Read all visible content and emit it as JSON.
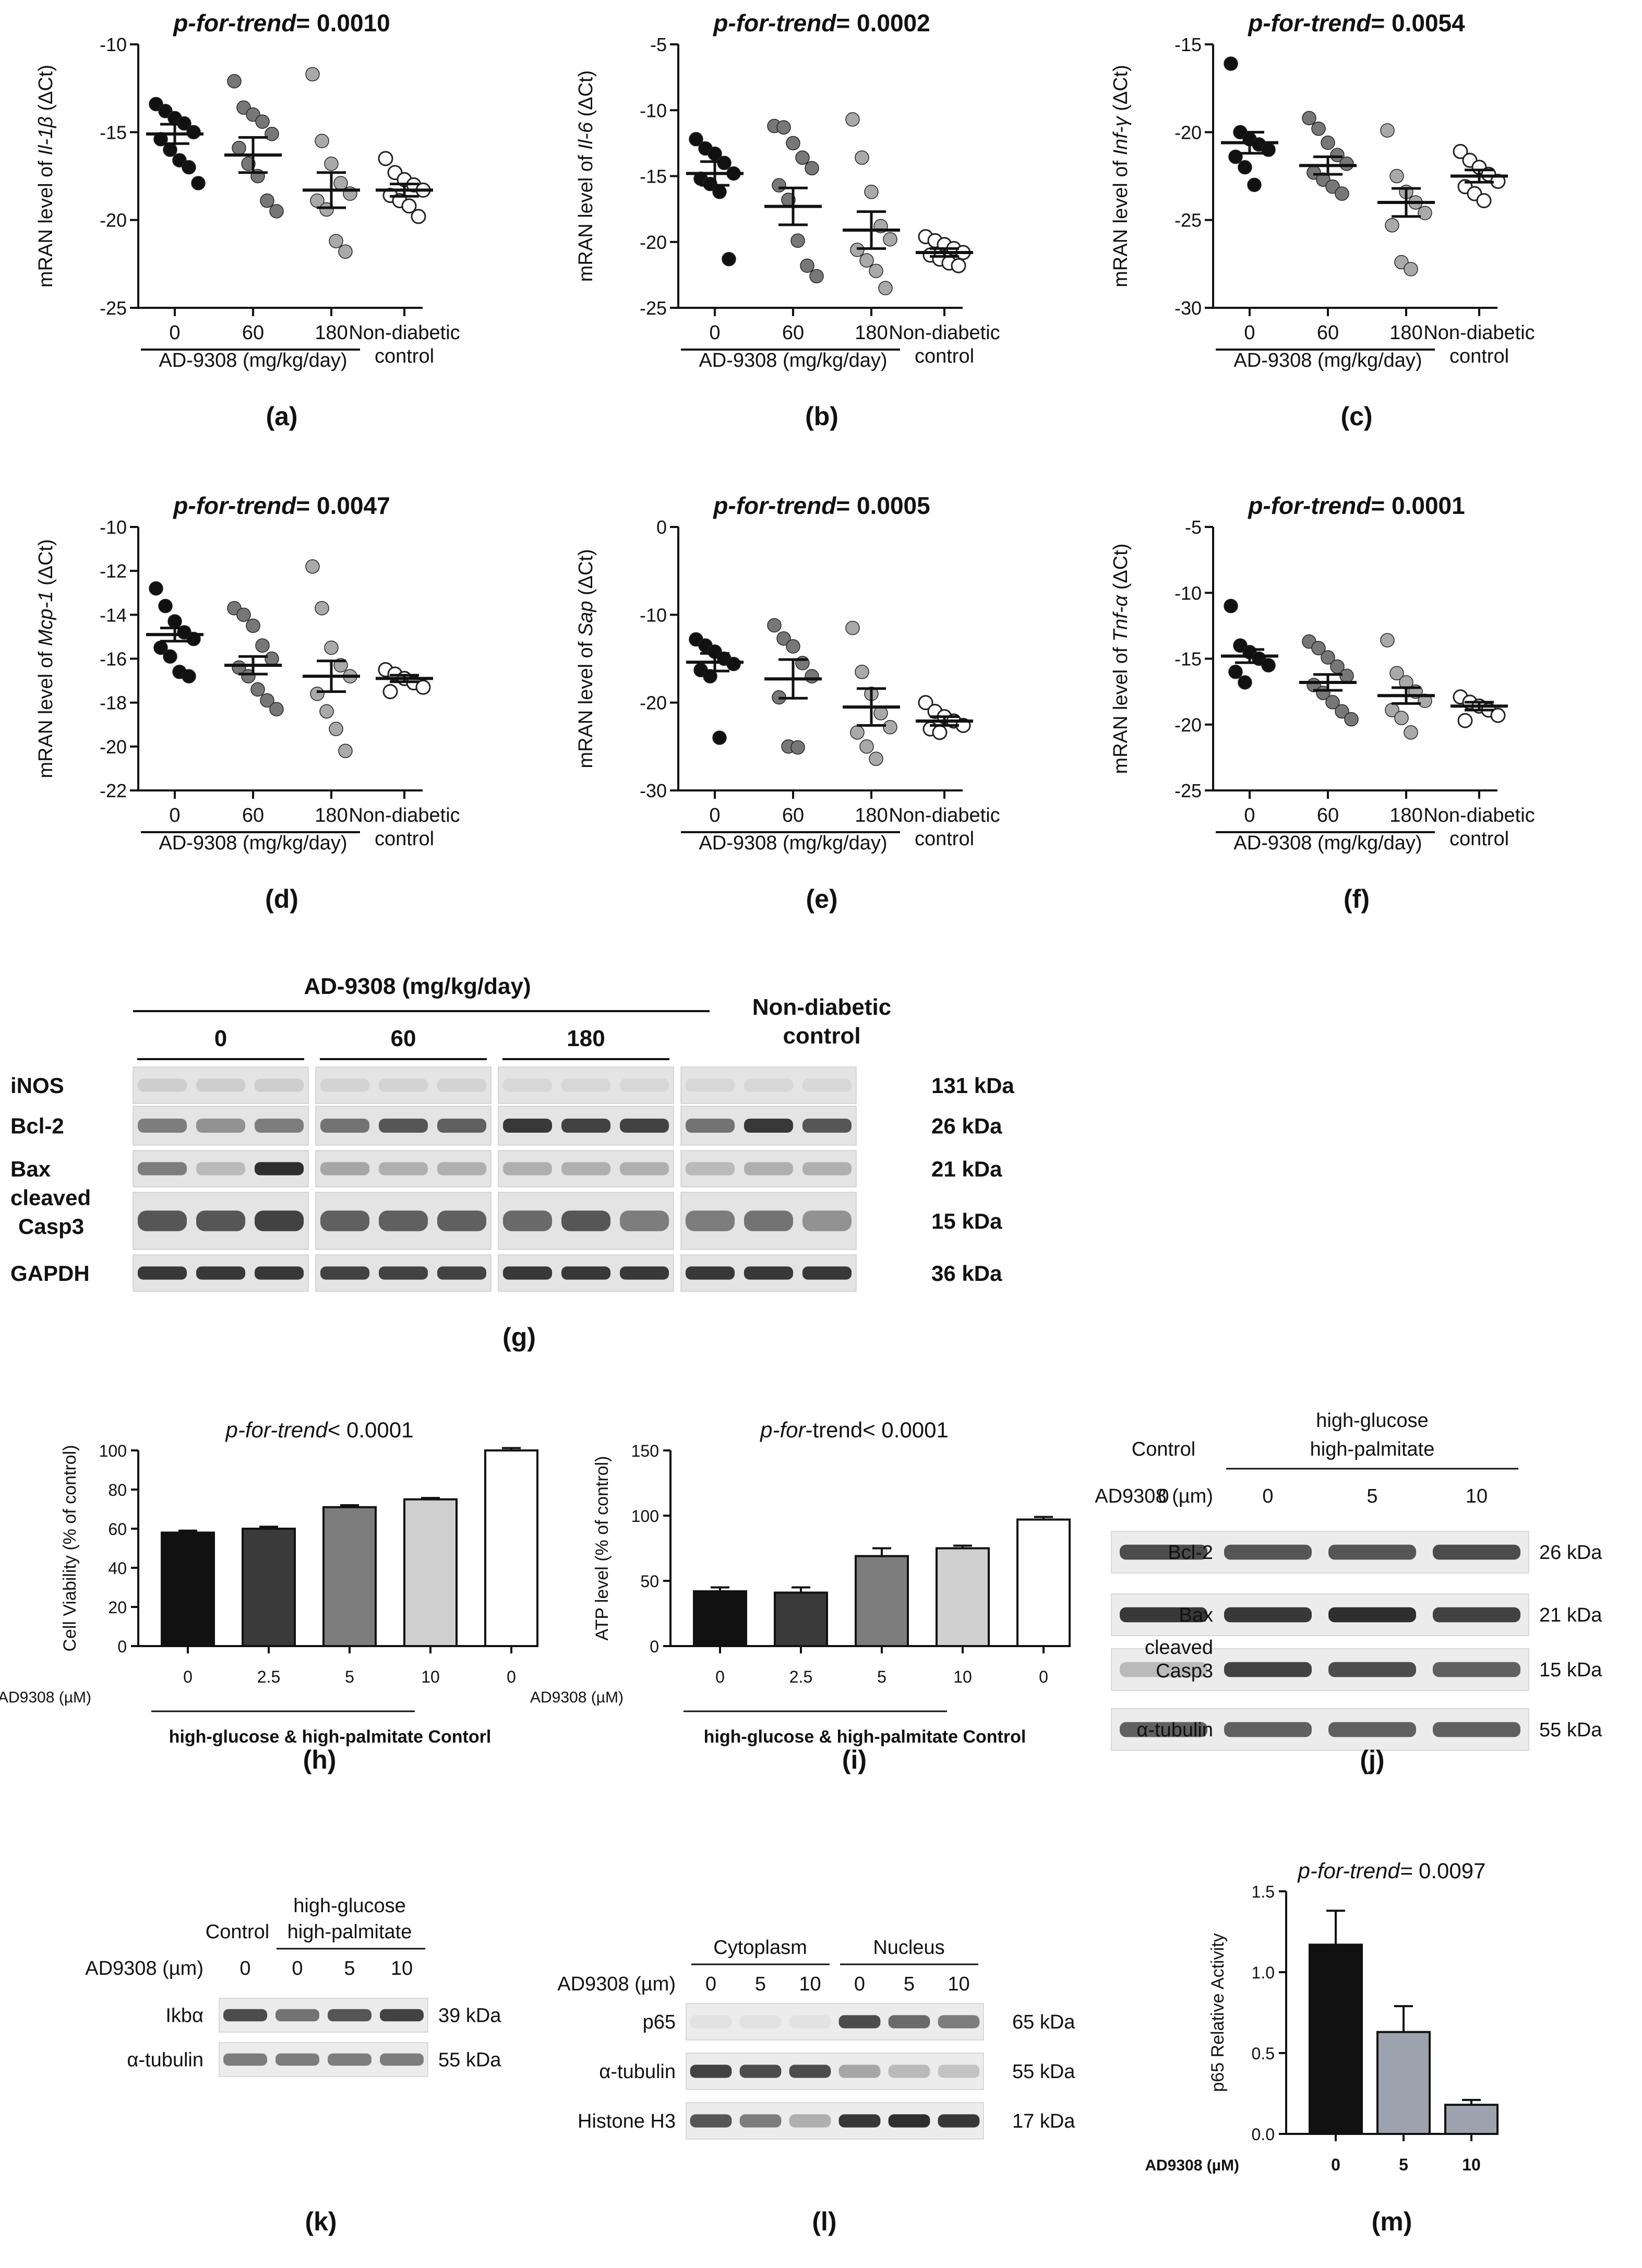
{
  "mrna_panels": [
    {
      "id": "a",
      "label": "(a)",
      "trend_prefix": "p-for-trend=",
      "trend_value": "0.0010",
      "ylabel_prefix": "mRAN level of ",
      "gene": "Il-1β",
      "ylabel_suffix": " (ΔCt)",
      "ylim": [
        -25,
        -10
      ],
      "yticks": [
        "-10",
        "-15",
        "-20",
        "-25"
      ],
      "groups": [
        {
          "x": "0",
          "color": "#111111",
          "mean": -15.1,
          "sem": 0.55,
          "points": [
            -13.4,
            -13.8,
            -14.2,
            -14.5,
            -15.0,
            -15.4,
            -16.0,
            -16.6,
            -17.0,
            -17.9
          ]
        },
        {
          "x": "60",
          "color": "#777777",
          "mean": -16.3,
          "sem": 1.0,
          "points": [
            -12.1,
            -13.6,
            -14.0,
            -14.4,
            -15.1,
            -15.9,
            -16.8,
            -17.5,
            -18.9,
            -19.5
          ]
        },
        {
          "x": "180",
          "color": "#a9a9a9",
          "mean": -18.3,
          "sem": 1.0,
          "points": [
            -11.7,
            -15.5,
            -16.8,
            -17.9,
            -18.5,
            -18.9,
            -19.4,
            -21.2,
            -21.8
          ]
        },
        {
          "x": "Non-diabetic control",
          "color": "#ffffff",
          "mean": -18.3,
          "sem": 0.35,
          "points": [
            -16.5,
            -17.3,
            -17.7,
            -18.0,
            -18.3,
            -18.6,
            -18.9,
            -19.2,
            -19.8
          ]
        }
      ]
    },
    {
      "id": "b",
      "label": "(b)",
      "trend_prefix": "p-for-trend=",
      "trend_value": "0.0002",
      "ylabel_prefix": "mRAN level of ",
      "gene": "Il-6",
      "ylabel_suffix": " (ΔCt)",
      "ylim": [
        -25,
        -5
      ],
      "yticks": [
        "-5",
        "-10",
        "-15",
        "-20",
        "-25"
      ],
      "groups": [
        {
          "x": "0",
          "color": "#111111",
          "mean": -14.8,
          "sem": 0.9,
          "points": [
            -12.2,
            -12.9,
            -13.3,
            -14.0,
            -14.8,
            -15.2,
            -15.6,
            -16.2,
            -21.3
          ]
        },
        {
          "x": "60",
          "color": "#777777",
          "mean": -17.3,
          "sem": 1.4,
          "points": [
            -11.2,
            -11.3,
            -12.5,
            -13.6,
            -14.4,
            -15.7,
            -16.8,
            -19.9,
            -21.8,
            -22.6
          ]
        },
        {
          "x": "180",
          "color": "#a9a9a9",
          "mean": -19.1,
          "sem": 1.4,
          "points": [
            -10.7,
            -13.6,
            -16.2,
            -18.8,
            -19.8,
            -20.6,
            -21.4,
            -22.2,
            -23.5
          ]
        },
        {
          "x": "Non-diabetic control",
          "color": "#ffffff",
          "mean": -20.8,
          "sem": 0.3,
          "points": [
            -19.6,
            -19.9,
            -20.2,
            -20.5,
            -20.8,
            -21.0,
            -21.3,
            -21.6,
            -21.8
          ]
        }
      ]
    },
    {
      "id": "c",
      "label": "(c)",
      "trend_prefix": "p-for-trend=",
      "trend_value": "0.0054",
      "ylabel_prefix": "mRAN level of ",
      "gene": "Inf-γ",
      "ylabel_suffix": " (ΔCt)",
      "ylim": [
        -30,
        -15
      ],
      "yticks": [
        "-15",
        "-20",
        "-25",
        "-30"
      ],
      "groups": [
        {
          "x": "0",
          "color": "#111111",
          "mean": -20.6,
          "sem": 0.6,
          "points": [
            -16.1,
            -20.0,
            -20.4,
            -20.7,
            -21.0,
            -21.4,
            -22.0,
            -23.0
          ]
        },
        {
          "x": "60",
          "color": "#777777",
          "mean": -21.9,
          "sem": 0.5,
          "points": [
            -19.2,
            -19.8,
            -20.6,
            -21.3,
            -21.8,
            -22.3,
            -22.7,
            -23.1,
            -23.5
          ]
        },
        {
          "x": "180",
          "color": "#a9a9a9",
          "mean": -24.0,
          "sem": 0.8,
          "points": [
            -19.9,
            -22.5,
            -23.4,
            -24.0,
            -24.6,
            -25.3,
            -27.4,
            -27.8
          ]
        },
        {
          "x": "Non-diabetic control",
          "color": "#ffffff",
          "mean": -22.5,
          "sem": 0.35,
          "points": [
            -21.1,
            -21.6,
            -22.0,
            -22.4,
            -22.8,
            -23.1,
            -23.5,
            -23.9
          ]
        }
      ]
    },
    {
      "id": "d",
      "label": "(d)",
      "trend_prefix": "p-for-trend=",
      "trend_value": "0.0047",
      "ylabel_prefix": "mRAN level of ",
      "gene": "Mcp-1",
      "ylabel_suffix": " (ΔCt)",
      "ylim": [
        -22,
        -10
      ],
      "yticks": [
        "-10",
        "-12",
        "-14",
        "-16",
        "-18",
        "-20",
        "-22"
      ],
      "groups": [
        {
          "x": "0",
          "color": "#111111",
          "mean": -14.9,
          "sem": 0.3,
          "points": [
            -12.8,
            -13.6,
            -14.3,
            -14.8,
            -15.1,
            -15.5,
            -15.9,
            -16.6,
            -16.8
          ]
        },
        {
          "x": "60",
          "color": "#777777",
          "mean": -16.3,
          "sem": 0.4,
          "points": [
            -13.7,
            -14.0,
            -14.5,
            -15.4,
            -16.0,
            -16.4,
            -16.8,
            -17.4,
            -17.9,
            -18.3
          ]
        },
        {
          "x": "180",
          "color": "#a9a9a9",
          "mean": -16.8,
          "sem": 0.7,
          "points": [
            -11.8,
            -13.7,
            -15.5,
            -16.3,
            -16.8,
            -17.6,
            -18.4,
            -19.2,
            -20.2
          ]
        },
        {
          "x": "Non-diabetic control",
          "color": "#ffffff",
          "mean": -16.9,
          "sem": 0.15,
          "points": [
            -16.5,
            -16.7,
            -16.9,
            -17.1,
            -17.3,
            -17.5
          ]
        }
      ]
    },
    {
      "id": "e",
      "label": "(e)",
      "trend_prefix": "p-for-trend=",
      "trend_value": "0.0005",
      "ylabel_prefix": "mRAN level of ",
      "gene": "Sap",
      "ylabel_suffix": " (ΔCt)",
      "ylim": [
        -30,
        0
      ],
      "yticks": [
        "0",
        "-10",
        "-20",
        "-30"
      ],
      "groups": [
        {
          "x": "0",
          "color": "#111111",
          "mean": -15.4,
          "sem": 1.0,
          "points": [
            -12.8,
            -13.5,
            -14.2,
            -15.0,
            -15.6,
            -16.3,
            -17.0,
            -24.0
          ]
        },
        {
          "x": "60",
          "color": "#777777",
          "mean": -17.3,
          "sem": 2.2,
          "points": [
            -11.2,
            -12.7,
            -13.6,
            -15.5,
            -17.0,
            -19.4,
            -25.0,
            -25.1
          ]
        },
        {
          "x": "180",
          "color": "#a9a9a9",
          "mean": -20.5,
          "sem": 2.1,
          "points": [
            -11.5,
            -16.5,
            -19.0,
            -21.2,
            -22.8,
            -23.4,
            -25.0,
            -26.4
          ]
        },
        {
          "x": "Non-diabetic control",
          "color": "#ffffff",
          "mean": -22.1,
          "sem": 0.5,
          "points": [
            -20.0,
            -21.0,
            -21.6,
            -22.1,
            -22.6,
            -23.0,
            -23.4
          ]
        }
      ]
    },
    {
      "id": "f",
      "label": "(f)",
      "trend_prefix": "p-for-trend=",
      "trend_value": "0.0001",
      "ylabel_prefix": "mRAN level of ",
      "gene": "Tnf-α",
      "ylabel_suffix": " (ΔCt)",
      "ylim": [
        -25,
        -5
      ],
      "yticks": [
        "-5",
        "-10",
        "-15",
        "-20",
        "-25"
      ],
      "groups": [
        {
          "x": "0",
          "color": "#111111",
          "mean": -14.8,
          "sem": 0.5,
          "points": [
            -11.0,
            -14.0,
            -14.5,
            -15.0,
            -15.5,
            -16.0,
            -16.8
          ]
        },
        {
          "x": "60",
          "color": "#777777",
          "mean": -16.8,
          "sem": 0.6,
          "points": [
            -13.7,
            -14.2,
            -14.9,
            -15.6,
            -16.3,
            -17.0,
            -17.6,
            -18.3,
            -19.0,
            -19.6
          ]
        },
        {
          "x": "180",
          "color": "#a9a9a9",
          "mean": -17.8,
          "sem": 0.6,
          "points": [
            -13.6,
            -16.1,
            -16.8,
            -17.5,
            -18.2,
            -18.9,
            -19.5,
            -20.6
          ]
        },
        {
          "x": "Non-diabetic control",
          "color": "#ffffff",
          "mean": -18.6,
          "sem": 0.3,
          "points": [
            -17.9,
            -18.3,
            -18.6,
            -18.9,
            -19.3,
            -19.7
          ]
        }
      ]
    }
  ],
  "mrna_axis_group_label": "AD-9308 (mg/kg/day)",
  "mrna_xcat_control_line1": "Non-diabetic",
  "mrna_xcat_control_line2": "control",
  "blot_g": {
    "label": "(g)",
    "header_treatment": "AD-9308 (mg/kg/day)",
    "groups": [
      "0",
      "60",
      "180"
    ],
    "control_line1": "Non-diabetic",
    "control_line2": "control",
    "rows": [
      {
        "name": "iNOS",
        "kda": "131 kDa",
        "intensities": [
          0.15,
          0.15,
          0.15,
          0.12,
          0.12,
          0.12,
          0.1,
          0.1,
          0.1,
          0.1,
          0.1,
          0.1
        ]
      },
      {
        "name": "Bcl-2",
        "kda": "26 kDa",
        "intensities": [
          0.55,
          0.45,
          0.55,
          0.6,
          0.75,
          0.7,
          0.9,
          0.85,
          0.85,
          0.6,
          0.9,
          0.75
        ]
      },
      {
        "name": "Bax",
        "kda": "21 kDa",
        "intensities": [
          0.55,
          0.25,
          0.95,
          0.35,
          0.3,
          0.3,
          0.3,
          0.3,
          0.3,
          0.25,
          0.3,
          0.3
        ]
      },
      {
        "name_line1": "cleaved",
        "name": "Casp3",
        "kda": "15 kDa",
        "intensities": [
          0.75,
          0.75,
          0.85,
          0.7,
          0.7,
          0.7,
          0.65,
          0.75,
          0.55,
          0.55,
          0.6,
          0.45
        ]
      },
      {
        "name": "GAPDH",
        "kda": "36 kDa",
        "intensities": [
          0.9,
          0.9,
          0.9,
          0.85,
          0.85,
          0.85,
          0.9,
          0.9,
          0.9,
          0.9,
          0.9,
          0.9
        ]
      }
    ]
  },
  "chart_data": [
    {
      "id": "h",
      "label": "(h)",
      "type": "bar",
      "title_prefix": "p-for-",
      "title_italic": "trend",
      "title_suffix": "< 0.0001",
      "ylabel": "Cell Viability (% of control)",
      "ylim": [
        0,
        100
      ],
      "yticks": [
        "0",
        "20",
        "40",
        "60",
        "80",
        "100"
      ],
      "xprefix": "AD9308 (µM)",
      "categories": [
        "0",
        "2.5",
        "5",
        "10",
        "0"
      ],
      "values": [
        58,
        60,
        71,
        75,
        100
      ],
      "errors": [
        1,
        1,
        1,
        0.7,
        1.2
      ],
      "colors": [
        "#111111",
        "#3a3a3a",
        "#7d7d7d",
        "#cfcfcf",
        "#ffffff"
      ],
      "group_caption": "high-glucose & high-palmitate Contorl"
    },
    {
      "id": "i",
      "label": "(i)",
      "type": "bar",
      "title_prefix": "p-",
      "title_italic": "for",
      "title_suffix": "-trend< 0.0001",
      "ylabel": "ATP level (% of control)",
      "ylim": [
        0,
        150
      ],
      "yticks": [
        "0",
        "50",
        "100",
        "150"
      ],
      "xprefix": "AD9308 (µM)",
      "categories": [
        "0",
        "2.5",
        "5",
        "10",
        "0"
      ],
      "values": [
        42,
        41,
        69,
        75,
        97
      ],
      "errors": [
        3,
        4,
        6,
        2,
        2
      ],
      "colors": [
        "#111111",
        "#3a3a3a",
        "#7d7d7d",
        "#cfcfcf",
        "#ffffff"
      ],
      "group_caption": "high-glucose & high-palmitate Control"
    },
    {
      "id": "m",
      "label": "(m)",
      "type": "bar",
      "title_prefix": "p-for-trend= ",
      "title_italic": "",
      "title_suffix": "0.0097",
      "ylabel": "p65 Relative Activity",
      "ylim": [
        0,
        1.5
      ],
      "yticks": [
        "0.0",
        "0.5",
        "1.0",
        "1.5"
      ],
      "xprefix": "AD9308 (µM)",
      "categories": [
        "0",
        "5",
        "10"
      ],
      "values": [
        1.17,
        0.63,
        0.18
      ],
      "errors": [
        0.21,
        0.16,
        0.03
      ],
      "colors": [
        "#111111",
        "#9da3ae",
        "#9da3ae"
      ],
      "group_caption": ""
    }
  ],
  "blot_j": {
    "label": "(j)",
    "control": "Control",
    "treat_line1": "high-glucose",
    "treat_line2": "high-palmitate",
    "dose_prefix": "AD9308 (µm)",
    "doses": [
      "0",
      "0",
      "5",
      "10"
    ],
    "rows": [
      {
        "name": "Bcl-2",
        "kda": "26 kDa",
        "intensities": [
          0.8,
          0.75,
          0.75,
          0.8
        ]
      },
      {
        "name": "Bax",
        "kda": "21 kDa",
        "intensities": [
          0.9,
          0.9,
          0.95,
          0.85
        ]
      },
      {
        "name_line1": "cleaved",
        "name": "Casp3",
        "kda": "15 kDa",
        "intensities": [
          0.25,
          0.85,
          0.8,
          0.7
        ]
      },
      {
        "name": "α-tubulin",
        "kda": "55 kDa",
        "intensities": [
          0.7,
          0.7,
          0.7,
          0.7
        ]
      }
    ]
  },
  "blot_k": {
    "label": "(k)",
    "control": "Control",
    "treat_line1": "high-glucose",
    "treat_line2": "high-palmitate",
    "dose_prefix": "AD9308 (µm)",
    "doses": [
      "0",
      "0",
      "5",
      "10"
    ],
    "rows": [
      {
        "name": "Ikbα",
        "kda": "39 kDa",
        "intensities": [
          0.8,
          0.6,
          0.75,
          0.85
        ]
      },
      {
        "name": "α-tubulin",
        "kda": "55 kDa",
        "intensities": [
          0.55,
          0.55,
          0.55,
          0.55
        ]
      }
    ]
  },
  "blot_l": {
    "label": "(l)",
    "cytoplasm": "Cytoplasm",
    "nucleus": "Nucleus",
    "dose_prefix": "AD9308 (µm)",
    "doses": [
      "0",
      "5",
      "10",
      "0",
      "5",
      "10"
    ],
    "rows": [
      {
        "name": "p65",
        "kda": "65 kDa",
        "intensities": [
          0.05,
          0.05,
          0.05,
          0.8,
          0.65,
          0.55
        ]
      },
      {
        "name": "α-tubulin",
        "kda": "55 kDa",
        "intensities": [
          0.85,
          0.8,
          0.8,
          0.35,
          0.25,
          0.2
        ]
      },
      {
        "name": "Histone H3",
        "kda": "17 kDa",
        "intensities": [
          0.75,
          0.55,
          0.3,
          0.9,
          0.95,
          0.9
        ]
      }
    ]
  }
}
